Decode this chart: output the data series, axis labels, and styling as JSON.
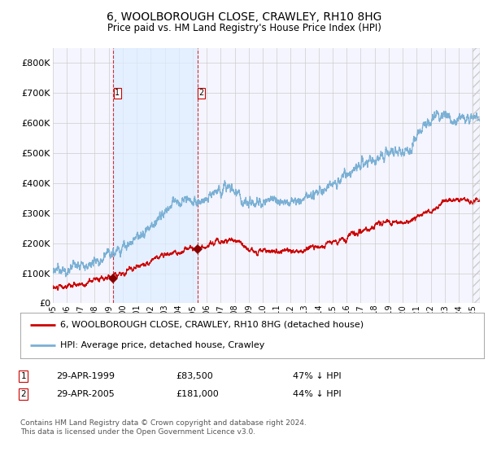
{
  "title": "6, WOOLBOROUGH CLOSE, CRAWLEY, RH10 8HG",
  "subtitle": "Price paid vs. HM Land Registry's House Price Index (HPI)",
  "legend_line1": "6, WOOLBOROUGH CLOSE, CRAWLEY, RH10 8HG (detached house)",
  "legend_line2": "HPI: Average price, detached house, Crawley",
  "transaction1_label": "1",
  "transaction1_date": "29-APR-1999",
  "transaction1_price": "£83,500",
  "transaction1_hpi": "47% ↓ HPI",
  "transaction2_label": "2",
  "transaction2_date": "29-APR-2005",
  "transaction2_price": "£181,000",
  "transaction2_hpi": "44% ↓ HPI",
  "footnote": "Contains HM Land Registry data © Crown copyright and database right 2024.\nThis data is licensed under the Open Government Licence v3.0.",
  "xmin": 1995.0,
  "xmax": 2025.5,
  "ymin": 0,
  "ymax": 850000,
  "red_line_color": "#cc0000",
  "blue_line_color": "#7ab0d4",
  "marker_color": "#880000",
  "vline_color": "#cc0000",
  "shade_color": "#ddeeff",
  "grid_color": "#cccccc",
  "background_color": "#ffffff",
  "plot_bg_color": "#f5f5ff",
  "transaction1_x": 1999.33,
  "transaction1_y": 83500,
  "transaction2_x": 2005.33,
  "transaction2_y": 181000,
  "yticks": [
    0,
    100000,
    200000,
    300000,
    400000,
    500000,
    600000,
    700000,
    800000
  ],
  "ytick_labels": [
    "£0",
    "£100K",
    "£200K",
    "£300K",
    "£400K",
    "£500K",
    "£600K",
    "£700K",
    "£800K"
  ],
  "xtick_years": [
    1995,
    1996,
    1997,
    1998,
    1999,
    2000,
    2001,
    2002,
    2003,
    2004,
    2005,
    2006,
    2007,
    2008,
    2009,
    2010,
    2011,
    2012,
    2013,
    2014,
    2015,
    2016,
    2017,
    2018,
    2019,
    2020,
    2021,
    2022,
    2023,
    2024,
    2025
  ],
  "hpi_base_dates": [
    1995.0,
    1995.5,
    1996.0,
    1996.5,
    1997.0,
    1997.5,
    1998.0,
    1998.5,
    1999.0,
    1999.5,
    2000.0,
    2000.5,
    2001.0,
    2001.5,
    2002.0,
    2002.5,
    2003.0,
    2003.5,
    2004.0,
    2004.5,
    2005.0,
    2005.5,
    2006.0,
    2006.5,
    2007.0,
    2007.5,
    2008.0,
    2008.5,
    2009.0,
    2009.5,
    2010.0,
    2010.5,
    2011.0,
    2011.5,
    2012.0,
    2012.5,
    2013.0,
    2013.5,
    2014.0,
    2014.5,
    2015.0,
    2015.5,
    2016.0,
    2016.5,
    2017.0,
    2017.5,
    2018.0,
    2018.5,
    2019.0,
    2019.5,
    2020.0,
    2020.5,
    2021.0,
    2021.5,
    2022.0,
    2022.5,
    2023.0,
    2023.5,
    2024.0,
    2024.5,
    2025.0
  ],
  "hpi_base_vals": [
    105000,
    108000,
    112000,
    117000,
    124000,
    132000,
    138000,
    148000,
    155000,
    165000,
    185000,
    205000,
    220000,
    240000,
    258000,
    278000,
    300000,
    318000,
    335000,
    345000,
    340000,
    342000,
    348000,
    358000,
    375000,
    380000,
    368000,
    345000,
    330000,
    325000,
    335000,
    340000,
    345000,
    342000,
    340000,
    342000,
    348000,
    360000,
    372000,
    385000,
    395000,
    405000,
    420000,
    440000,
    460000,
    468000,
    478000,
    490000,
    500000,
    505000,
    498000,
    510000,
    550000,
    590000,
    620000,
    638000,
    625000,
    615000,
    610000,
    618000,
    620000
  ],
  "price_base_dates": [
    1995.0,
    1995.5,
    1996.0,
    1996.5,
    1997.0,
    1997.5,
    1998.0,
    1998.5,
    1999.0,
    1999.5,
    2000.0,
    2000.5,
    2001.0,
    2001.5,
    2002.0,
    2002.5,
    2003.0,
    2003.5,
    2004.0,
    2004.5,
    2005.0,
    2005.5,
    2006.0,
    2006.5,
    2007.0,
    2007.5,
    2008.0,
    2008.5,
    2009.0,
    2009.5,
    2010.0,
    2010.5,
    2011.0,
    2011.5,
    2012.0,
    2012.5,
    2013.0,
    2013.5,
    2014.0,
    2014.5,
    2015.0,
    2015.5,
    2016.0,
    2016.5,
    2017.0,
    2017.5,
    2018.0,
    2018.5,
    2019.0,
    2019.5,
    2020.0,
    2020.5,
    2021.0,
    2021.5,
    2022.0,
    2022.5,
    2023.0,
    2023.5,
    2024.0,
    2024.5,
    2025.0
  ],
  "price_base_vals": [
    55000,
    55000,
    58000,
    61000,
    64000,
    68000,
    72000,
    78000,
    83500,
    90000,
    100000,
    112000,
    122000,
    132000,
    143000,
    155000,
    162000,
    168000,
    173000,
    177000,
    181000,
    185000,
    193000,
    200000,
    205000,
    208000,
    205000,
    200000,
    185000,
    168000,
    172000,
    175000,
    178000,
    176000,
    173000,
    175000,
    178000,
    182000,
    188000,
    195000,
    200000,
    208000,
    218000,
    228000,
    240000,
    250000,
    258000,
    265000,
    270000,
    272000,
    268000,
    275000,
    288000,
    300000,
    310000,
    325000,
    338000,
    348000,
    348000,
    340000,
    338000
  ]
}
